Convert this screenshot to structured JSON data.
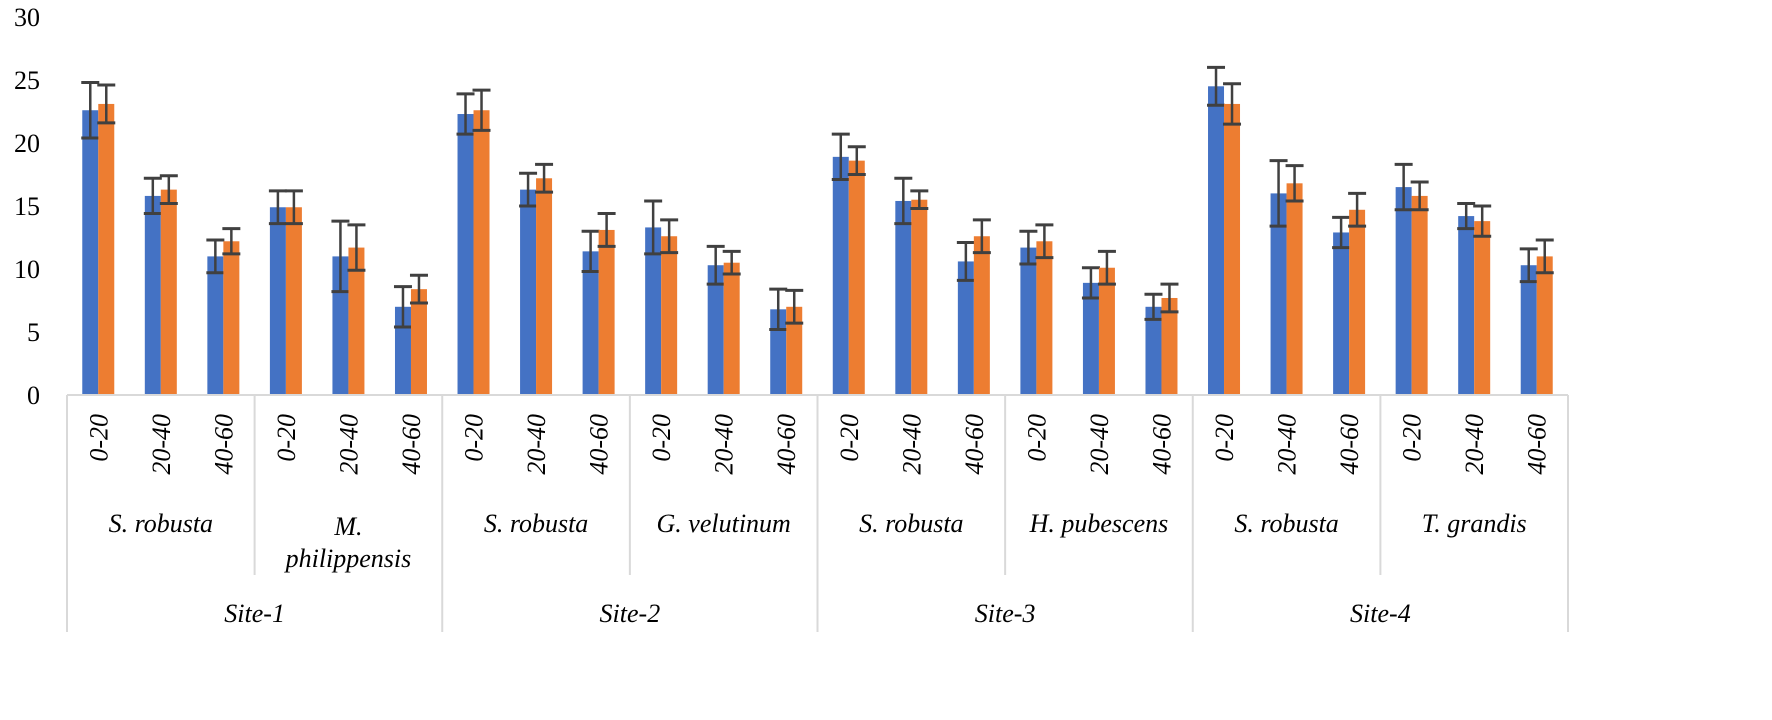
{
  "chart_data": {
    "type": "bar",
    "ylim": [
      0,
      30
    ],
    "yticks": [
      0,
      5,
      10,
      15,
      20,
      25,
      30
    ],
    "grid": false,
    "legend": "none",
    "colors": {
      "series1": "#4472C4",
      "series2": "#ED7D31",
      "error_bar": "#404040",
      "axis": "#D9D9D9"
    },
    "sites": [
      {
        "label": "Site-1",
        "species": [
          {
            "label": "S. robusta",
            "depths": [
              "0-20",
              "20-40",
              "40-60"
            ],
            "values": [
              [
                22.6,
                23.1
              ],
              [
                15.8,
                16.3
              ],
              [
                11.0,
                12.2
              ]
            ],
            "errors": [
              [
                2.2,
                1.5
              ],
              [
                1.4,
                1.1
              ],
              [
                1.3,
                1.0
              ]
            ]
          },
          {
            "label": "M. philippensis",
            "depths": [
              "0-20",
              "20-40",
              "40-60"
            ],
            "values": [
              [
                14.9,
                14.9
              ],
              [
                11.0,
                11.7
              ],
              [
                7.0,
                8.4
              ]
            ],
            "errors": [
              [
                1.3,
                1.3
              ],
              [
                2.8,
                1.8
              ],
              [
                1.6,
                1.1
              ]
            ]
          }
        ]
      },
      {
        "label": "Site-2",
        "species": [
          {
            "label": "S. robusta",
            "depths": [
              "0-20",
              "20-40",
              "40-60"
            ],
            "values": [
              [
                22.3,
                22.6
              ],
              [
                16.3,
                17.2
              ],
              [
                11.4,
                13.1
              ]
            ],
            "errors": [
              [
                1.6,
                1.6
              ],
              [
                1.3,
                1.1
              ],
              [
                1.6,
                1.3
              ]
            ]
          },
          {
            "label": "G. velutinum",
            "depths": [
              "0-20",
              "20-40",
              "40-60"
            ],
            "values": [
              [
                13.3,
                12.6
              ],
              [
                10.3,
                10.5
              ],
              [
                6.8,
                7.0
              ]
            ],
            "errors": [
              [
                2.1,
                1.3
              ],
              [
                1.5,
                0.9
              ],
              [
                1.6,
                1.3
              ]
            ]
          }
        ]
      },
      {
        "label": "Site-3",
        "species": [
          {
            "label": "S. robusta",
            "depths": [
              "0-20",
              "20-40",
              "40-60"
            ],
            "values": [
              [
                18.9,
                18.6
              ],
              [
                15.4,
                15.5
              ],
              [
                10.6,
                12.6
              ]
            ],
            "errors": [
              [
                1.8,
                1.1
              ],
              [
                1.8,
                0.7
              ],
              [
                1.5,
                1.3
              ]
            ]
          },
          {
            "label": "H. pubescens",
            "depths": [
              "0-20",
              "20-40",
              "40-60"
            ],
            "values": [
              [
                11.7,
                12.2
              ],
              [
                8.9,
                10.1
              ],
              [
                7.0,
                7.7
              ]
            ],
            "errors": [
              [
                1.3,
                1.3
              ],
              [
                1.2,
                1.3
              ],
              [
                1.0,
                1.1
              ]
            ]
          }
        ]
      },
      {
        "label": "Site-4",
        "species": [
          {
            "label": "S. robusta",
            "depths": [
              "0-20",
              "20-40",
              "40-60"
            ],
            "values": [
              [
                24.5,
                23.1
              ],
              [
                16.0,
                16.8
              ],
              [
                12.9,
                14.7
              ]
            ],
            "errors": [
              [
                1.5,
                1.6
              ],
              [
                2.6,
                1.4
              ],
              [
                1.2,
                1.3
              ]
            ]
          },
          {
            "label": "T. grandis",
            "depths": [
              "0-20",
              "20-40",
              "40-60"
            ],
            "values": [
              [
                16.5,
                15.8
              ],
              [
                14.2,
                13.8
              ],
              [
                10.3,
                11.0
              ]
            ],
            "errors": [
              [
                1.8,
                1.1
              ],
              [
                1.0,
                1.2
              ],
              [
                1.3,
                1.3
              ]
            ]
          }
        ]
      }
    ]
  }
}
